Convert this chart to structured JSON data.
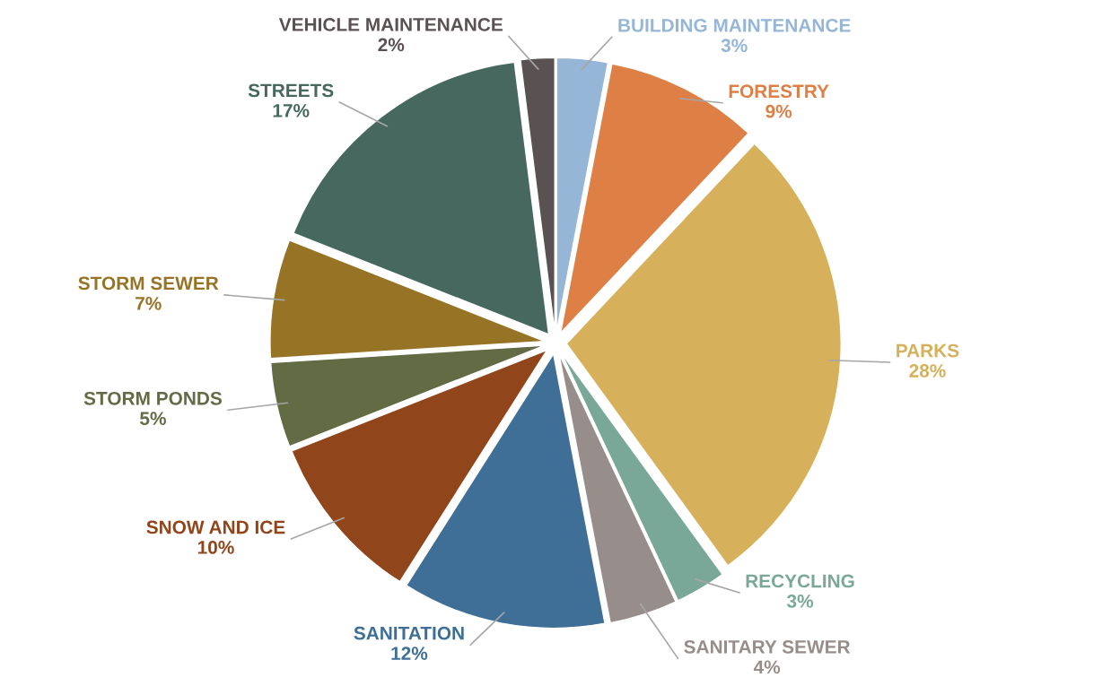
{
  "chart_data": {
    "type": "pie",
    "categories": [
      "BUILDING MAINTENANCE",
      "FORESTRY",
      "PARKS",
      "RECYCLING",
      "SANITARY SEWER",
      "SANITATION",
      "SNOW AND ICE",
      "STORM PONDS",
      "STORM SEWER",
      "STREETS",
      "VEHICLE MAINTENANCE"
    ],
    "values": [
      3,
      9,
      28,
      3,
      4,
      12,
      10,
      5,
      7,
      17,
      2
    ],
    "value_labels": [
      "3%",
      "9%",
      "28%",
      "3%",
      "4%",
      "12%",
      "10%",
      "5%",
      "7%",
      "17%",
      "2%"
    ],
    "colors": [
      "#95b6d6",
      "#de7f46",
      "#d6b05a",
      "#7aa898",
      "#978d8a",
      "#3f6f97",
      "#91451a",
      "#636b45",
      "#977425",
      "#46685f",
      "#5a5152"
    ]
  }
}
